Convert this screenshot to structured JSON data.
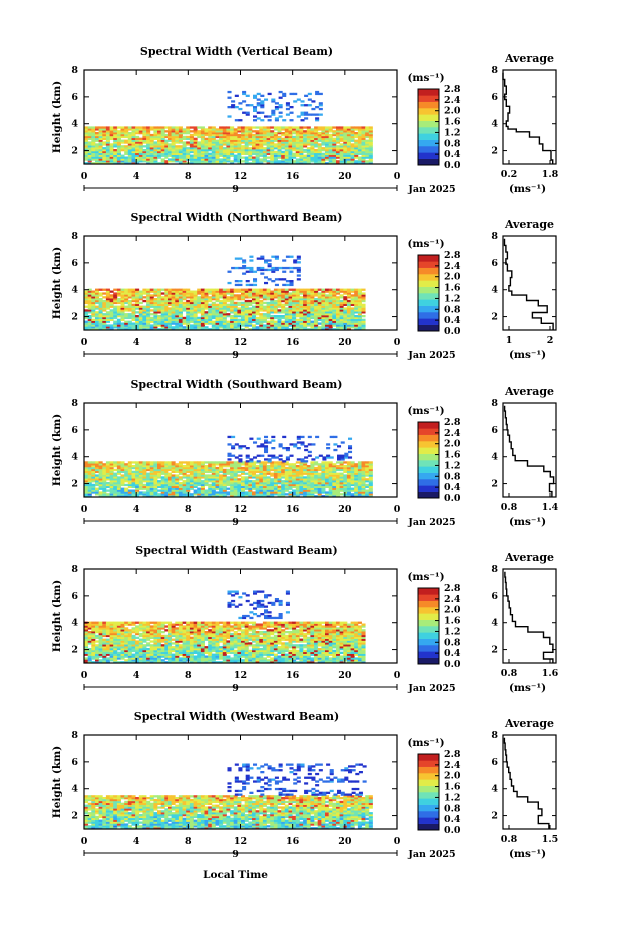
{
  "figure": {
    "xlabel": "Local Time",
    "colors": {
      "colormap": [
        "#1a1a66",
        "#2233cc",
        "#2f6ee6",
        "#35a8f0",
        "#3fd1e0",
        "#6fe3b8",
        "#a8ec7a",
        "#e2ec48",
        "#f7c431",
        "#f68a28",
        "#e5452a",
        "#c21f1f"
      ]
    }
  },
  "panels": [
    {
      "title": "Spectral Width (Vertical Beam)",
      "ylabel": "Height (km)",
      "units": "(ms⁻¹)",
      "date_label": "Jan 2025",
      "day_label": "9",
      "x_ticks": [
        "0",
        "4",
        "8",
        "12",
        "16",
        "20",
        "0"
      ],
      "y_ticks": [
        "2",
        "4",
        "6",
        "8"
      ],
      "cbar_ticks": [
        "0.0",
        "0.4",
        "0.8",
        "1.2",
        "1.6",
        "2.0",
        "2.4",
        "2.8"
      ],
      "profile_title": "Average",
      "profile_xticks": [
        "0.2",
        "1.8"
      ],
      "profile_yticks": [
        "2",
        "4",
        "6",
        "8"
      ]
    },
    {
      "title": "Spectral Width (Northward Beam)",
      "ylabel": "Height (km)",
      "units": "(ms⁻¹)",
      "date_label": "Jan 2025",
      "day_label": "9",
      "x_ticks": [
        "0",
        "4",
        "8",
        "12",
        "16",
        "20",
        "0"
      ],
      "y_ticks": [
        "2",
        "4",
        "6",
        "8"
      ],
      "cbar_ticks": [
        "0.0",
        "0.4",
        "0.8",
        "1.2",
        "1.6",
        "2.0",
        "2.4",
        "2.8"
      ],
      "profile_title": "Average",
      "profile_xticks": [
        "1",
        "2"
      ],
      "profile_yticks": [
        "2",
        "4",
        "6",
        "8"
      ]
    },
    {
      "title": "Spectral Width (Southward Beam)",
      "ylabel": "Height (km)",
      "units": "(ms⁻¹)",
      "date_label": "Jan 2025",
      "day_label": "9",
      "x_ticks": [
        "0",
        "4",
        "8",
        "12",
        "16",
        "20",
        "0"
      ],
      "y_ticks": [
        "2",
        "4",
        "6",
        "8"
      ],
      "cbar_ticks": [
        "0.0",
        "0.4",
        "0.8",
        "1.2",
        "1.6",
        "2.0",
        "2.4",
        "2.8"
      ],
      "profile_title": "Average",
      "profile_xticks": [
        "0.8",
        "1.4"
      ],
      "profile_yticks": [
        "2",
        "4",
        "6",
        "8"
      ]
    },
    {
      "title": "Spectral Width (Eastward Beam)",
      "ylabel": "Height (km)",
      "units": "(ms⁻¹)",
      "date_label": "Jan 2025",
      "day_label": "9",
      "x_ticks": [
        "0",
        "4",
        "8",
        "12",
        "16",
        "20",
        "0"
      ],
      "y_ticks": [
        "2",
        "4",
        "6",
        "8"
      ],
      "cbar_ticks": [
        "0.0",
        "0.4",
        "0.8",
        "1.2",
        "1.6",
        "2.0",
        "2.4",
        "2.8"
      ],
      "profile_title": "Average",
      "profile_xticks": [
        "0.8",
        "1.6"
      ],
      "profile_yticks": [
        "2",
        "4",
        "6",
        "8"
      ]
    },
    {
      "title": "Spectral Width (Westward Beam)",
      "ylabel": "Height (km)",
      "units": "(ms⁻¹)",
      "date_label": "Jan 2025",
      "day_label": "9",
      "x_ticks": [
        "0",
        "4",
        "8",
        "12",
        "16",
        "20",
        "0"
      ],
      "y_ticks": [
        "2",
        "4",
        "6",
        "8"
      ],
      "cbar_ticks": [
        "0.0",
        "0.4",
        "0.8",
        "1.2",
        "1.6",
        "2.0",
        "2.4",
        "2.8"
      ],
      "profile_title": "Average",
      "profile_xticks": [
        "0.8",
        "1.5"
      ],
      "profile_yticks": [
        "2",
        "4",
        "6",
        "8"
      ]
    }
  ],
  "chart_data": [
    {
      "type": "heatmap",
      "title": "Spectral Width (Vertical Beam)",
      "xlabel": "",
      "ylabel": "Height (km)",
      "xlim": [
        0,
        24
      ],
      "ylim": [
        1,
        8
      ],
      "colorbar_range": [
        0.0,
        2.8
      ],
      "echo_regions": [
        {
          "x": [
            0,
            22
          ],
          "y": [
            1.0,
            3.7
          ],
          "mean_width": 1.2,
          "peak_width": 2.4
        },
        {
          "x": [
            11,
            18
          ],
          "y": [
            4.2,
            6.4
          ],
          "mean_width": 0.6,
          "peak_width": 0.8
        }
      ]
    },
    {
      "type": "line",
      "title": "Average",
      "xlabel": "(ms⁻¹)",
      "ylabel": "",
      "xlim": [
        0.2,
        1.8
      ],
      "ylim": [
        1,
        8
      ],
      "x": [
        1.7,
        1.65,
        1.4,
        1.3,
        1.0,
        0.6,
        0.35,
        0.3,
        0.35,
        0.4,
        0.3,
        0.25,
        0.3,
        0.25,
        0.2
      ],
      "y": [
        1.3,
        2.0,
        2.5,
        3.0,
        3.4,
        3.6,
        3.8,
        4.2,
        4.8,
        5.3,
        5.8,
        6.2,
        6.8,
        7.3,
        7.8
      ]
    },
    {
      "type": "heatmap",
      "title": "Spectral Width (Northward Beam)",
      "xlabel": "",
      "ylabel": "Height (km)",
      "xlim": [
        0,
        24
      ],
      "ylim": [
        1,
        8
      ],
      "colorbar_range": [
        0.0,
        2.8
      ],
      "echo_regions": [
        {
          "x": [
            0,
            21.5
          ],
          "y": [
            1.0,
            4.0
          ],
          "mean_width": 1.2,
          "peak_width": 2.6
        },
        {
          "x": [
            11,
            16.5
          ],
          "y": [
            4.3,
            6.5
          ],
          "mean_width": 0.6,
          "peak_width": 0.8
        }
      ]
    },
    {
      "type": "line",
      "title": "Average",
      "xlabel": "(ms⁻¹)",
      "ylabel": "",
      "xlim": [
        0.4,
        2.2
      ],
      "ylim": [
        1,
        8
      ],
      "x": [
        2.1,
        1.7,
        1.4,
        1.9,
        1.6,
        1.2,
        0.7,
        0.6,
        0.65,
        0.7,
        0.55,
        0.5,
        0.55,
        0.5,
        0.45
      ],
      "y": [
        1.5,
        1.9,
        2.3,
        2.8,
        3.2,
        3.6,
        3.9,
        4.3,
        4.9,
        5.4,
        5.9,
        6.3,
        6.8,
        7.3,
        7.8
      ]
    },
    {
      "type": "heatmap",
      "title": "Spectral Width (Southward Beam)",
      "xlabel": "",
      "ylabel": "Height (km)",
      "xlim": [
        0,
        24
      ],
      "ylim": [
        1,
        8
      ],
      "colorbar_range": [
        0.0,
        2.8
      ],
      "echo_regions": [
        {
          "x": [
            0,
            22
          ],
          "y": [
            1.0,
            3.6
          ],
          "mean_width": 1.1,
          "peak_width": 2.3
        },
        {
          "x": [
            11,
            20.5
          ],
          "y": [
            3.6,
            5.5
          ],
          "mean_width": 0.5,
          "peak_width": 0.8
        }
      ]
    },
    {
      "type": "line",
      "title": "Average",
      "xlabel": "(ms⁻¹)",
      "ylabel": "",
      "xlim": [
        0.8,
        1.45
      ],
      "ylim": [
        1,
        8
      ],
      "x": [
        1.4,
        1.37,
        1.42,
        1.38,
        1.3,
        1.1,
        0.95,
        0.92,
        0.9,
        0.88,
        0.86,
        0.85,
        0.84,
        0.83,
        0.82
      ],
      "y": [
        1.4,
        2.0,
        2.5,
        2.9,
        3.3,
        3.7,
        4.1,
        4.6,
        5.1,
        5.6,
        6.0,
        6.4,
        6.9,
        7.4,
        7.8
      ]
    },
    {
      "type": "heatmap",
      "title": "Spectral Width (Eastward Beam)",
      "xlabel": "",
      "ylabel": "Height (km)",
      "xlim": [
        0,
        24
      ],
      "ylim": [
        1,
        8
      ],
      "colorbar_range": [
        0.0,
        2.8
      ],
      "echo_regions": [
        {
          "x": [
            0,
            21.5
          ],
          "y": [
            1.0,
            4.0
          ],
          "mean_width": 1.2,
          "peak_width": 2.6
        },
        {
          "x": [
            11,
            16
          ],
          "y": [
            4.3,
            6.3
          ],
          "mean_width": 0.5,
          "peak_width": 0.8
        }
      ]
    },
    {
      "type": "line",
      "title": "Average",
      "xlabel": "(ms⁻¹)",
      "ylabel": "",
      "xlim": [
        0.8,
        1.65
      ],
      "ylim": [
        1,
        8
      ],
      "x": [
        1.6,
        1.45,
        1.6,
        1.55,
        1.45,
        1.2,
        1.0,
        0.95,
        0.92,
        0.9,
        0.88,
        0.86,
        0.85,
        0.84,
        0.83
      ],
      "y": [
        1.3,
        1.8,
        2.4,
        2.9,
        3.3,
        3.7,
        4.1,
        4.6,
        5.1,
        5.6,
        6.0,
        6.5,
        7.0,
        7.4,
        7.8
      ]
    },
    {
      "type": "heatmap",
      "title": "Spectral Width (Westward Beam)",
      "xlabel": "Local Time",
      "ylabel": "Height (km)",
      "xlim": [
        0,
        24
      ],
      "ylim": [
        1,
        8
      ],
      "colorbar_range": [
        0.0,
        2.8
      ],
      "echo_regions": [
        {
          "x": [
            0,
            22
          ],
          "y": [
            1.0,
            3.5
          ],
          "mean_width": 1.1,
          "peak_width": 2.4
        },
        {
          "x": [
            11,
            21.5
          ],
          "y": [
            3.5,
            5.8
          ],
          "mean_width": 0.5,
          "peak_width": 0.8
        }
      ]
    },
    {
      "type": "line",
      "title": "Average",
      "xlabel": "(ms⁻¹)",
      "ylabel": "",
      "xlim": [
        0.8,
        1.55
      ],
      "ylim": [
        1,
        8
      ],
      "x": [
        1.45,
        1.3,
        1.35,
        1.3,
        1.15,
        1.0,
        0.95,
        0.92,
        0.9,
        0.88,
        0.86,
        0.85,
        0.84,
        0.83,
        0.82
      ],
      "y": [
        1.4,
        2.0,
        2.5,
        3.0,
        3.4,
        3.8,
        4.2,
        4.7,
        5.2,
        5.6,
        6.0,
        6.5,
        6.9,
        7.4,
        7.8
      ]
    }
  ]
}
